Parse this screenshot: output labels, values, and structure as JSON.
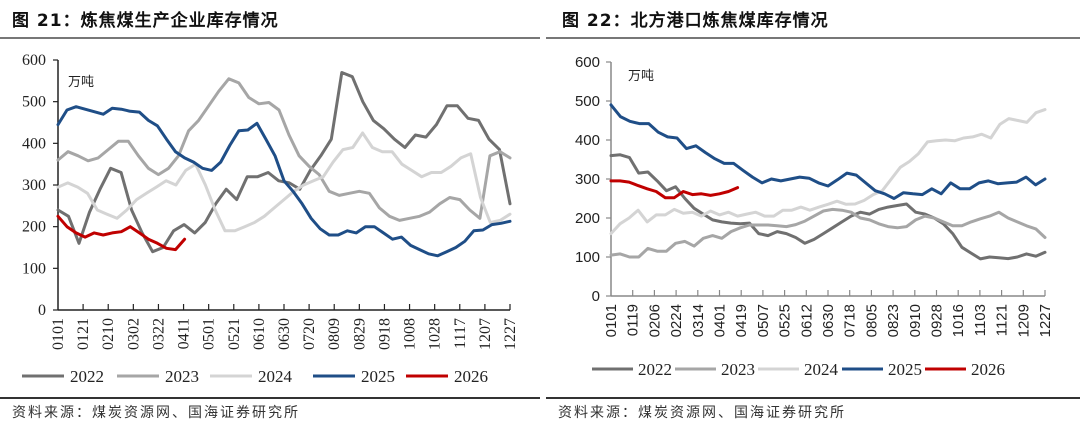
{
  "left_title": "图 21：炼焦煤生产企业库存情况",
  "right_title": "图 22：北方港口炼焦煤库存情况",
  "left_source": "资料来源：煤炭资源网、国海证券研究所",
  "right_source": "资料来源：煤炭资源网、国海证券研究所",
  "chart_data": [
    {
      "type": "line",
      "title": "炼焦煤生产企业库存情况",
      "ylabel": "万吨",
      "ylim": [
        0,
        600
      ],
      "yticks": [
        "0",
        "100",
        "200",
        "300",
        "400",
        "500",
        "600"
      ],
      "xtick_labels": [
        "0101",
        "0121",
        "0210",
        "0302",
        "0322",
        "0411",
        "0501",
        "0521",
        "0610",
        "0630",
        "0720",
        "0809",
        "0829",
        "0918",
        "1008",
        "1028",
        "1117",
        "1207",
        "1227"
      ],
      "x_step_days": 10,
      "legend": [
        "2022",
        "2023",
        "2024",
        "2025",
        "2026"
      ],
      "legend_position": "bottom",
      "series": [
        {
          "name": "2022",
          "color": "#707070",
          "values": [
            240,
            225,
            160,
            235,
            290,
            340,
            330,
            240,
            185,
            140,
            150,
            190,
            205,
            185,
            210,
            255,
            290,
            265,
            320,
            320,
            330,
            310,
            305,
            290,
            335,
            370,
            410,
            570,
            560,
            500,
            455,
            435,
            410,
            390,
            420,
            415,
            445,
            490,
            490,
            460,
            455,
            410,
            385,
            255
          ]
        },
        {
          "name": "2023",
          "color": "#a6a6a6",
          "values": [
            360,
            380,
            370,
            358,
            365,
            385,
            405,
            405,
            370,
            340,
            325,
            340,
            370,
            430,
            455,
            490,
            525,
            555,
            545,
            510,
            495,
            498,
            480,
            420,
            370,
            345,
            325,
            285,
            275,
            280,
            285,
            280,
            245,
            225,
            215,
            220,
            225,
            235,
            255,
            270,
            265,
            240,
            220,
            370,
            380,
            365
          ]
        },
        {
          "name": "2024",
          "color": "#d4d4d4",
          "values": [
            295,
            305,
            295,
            280,
            240,
            230,
            220,
            240,
            265,
            280,
            295,
            310,
            300,
            335,
            350,
            300,
            240,
            190,
            190,
            200,
            210,
            225,
            245,
            265,
            285,
            300,
            310,
            320,
            355,
            385,
            390,
            425,
            390,
            380,
            380,
            350,
            335,
            320,
            330,
            330,
            345,
            365,
            375,
            270,
            210,
            215,
            230
          ]
        },
        {
          "name": "2025",
          "color": "#1f4e87",
          "values": [
            445,
            480,
            488,
            482,
            476,
            470,
            484,
            482,
            477,
            475,
            455,
            442,
            410,
            380,
            365,
            355,
            340,
            335,
            355,
            395,
            430,
            432,
            448,
            410,
            370,
            310,
            285,
            255,
            220,
            195,
            180,
            180,
            190,
            185,
            200,
            200,
            185,
            170,
            175,
            155,
            145,
            135,
            130,
            140,
            150,
            165,
            190,
            192,
            205,
            208,
            213
          ]
        },
        {
          "name": "2026",
          "color": "#c00000",
          "values": [
            225,
            200,
            185,
            175,
            185,
            180,
            185,
            188,
            200,
            185,
            170,
            160,
            148,
            145,
            170
          ]
        }
      ]
    },
    {
      "type": "line",
      "title": "北方港口炼焦煤库存情况",
      "ylabel": "万吨",
      "ylim": [
        0,
        600
      ],
      "yticks": [
        "0",
        "100",
        "200",
        "300",
        "400",
        "500",
        "600"
      ],
      "xtick_labels": [
        "0101",
        "0119",
        "0206",
        "0224",
        "0314",
        "0401",
        "0419",
        "0507",
        "0525",
        "0612",
        "0630",
        "0718",
        "0805",
        "0823",
        "0910",
        "0928",
        "1016",
        "1103",
        "1121",
        "1209",
        "1227"
      ],
      "x_step_days": 9,
      "legend": [
        "2022",
        "2023",
        "2024",
        "2025",
        "2026"
      ],
      "legend_position": "bottom",
      "series": [
        {
          "name": "2022",
          "color": "#707070",
          "values": [
            360,
            362,
            355,
            315,
            318,
            295,
            270,
            280,
            250,
            225,
            210,
            195,
            190,
            187,
            185,
            187,
            160,
            155,
            165,
            160,
            150,
            135,
            145,
            160,
            175,
            190,
            205,
            215,
            210,
            222,
            228,
            232,
            236,
            215,
            210,
            200,
            185,
            160,
            125,
            110,
            95,
            100,
            98,
            96,
            100,
            108,
            102,
            112
          ]
        },
        {
          "name": "2023",
          "color": "#a6a6a6",
          "values": [
            105,
            108,
            100,
            100,
            122,
            115,
            115,
            135,
            140,
            128,
            148,
            155,
            148,
            165,
            175,
            182,
            182,
            182,
            180,
            178,
            183,
            192,
            205,
            218,
            222,
            220,
            215,
            200,
            195,
            185,
            178,
            175,
            178,
            195,
            205,
            200,
            190,
            180,
            180,
            190,
            198,
            205,
            215,
            200,
            190,
            180,
            172,
            150
          ]
        },
        {
          "name": "2024",
          "color": "#d4d4d4",
          "values": [
            160,
            185,
            200,
            220,
            190,
            208,
            208,
            222,
            212,
            215,
            205,
            218,
            208,
            215,
            205,
            210,
            215,
            205,
            205,
            220,
            220,
            228,
            220,
            228,
            235,
            243,
            235,
            236,
            245,
            260,
            270,
            300,
            330,
            345,
            365,
            395,
            398,
            400,
            398,
            405,
            408,
            415,
            405,
            440,
            455,
            450,
            445,
            470,
            478
          ]
        },
        {
          "name": "2025",
          "color": "#1f4e87",
          "values": [
            490,
            460,
            448,
            442,
            442,
            420,
            408,
            405,
            378,
            385,
            368,
            352,
            340,
            340,
            322,
            305,
            290,
            300,
            295,
            300,
            305,
            302,
            290,
            282,
            298,
            315,
            310,
            290,
            270,
            262,
            250,
            265,
            262,
            260,
            275,
            262,
            290,
            275,
            275,
            290,
            295,
            288,
            290,
            292,
            305,
            285,
            300
          ]
        },
        {
          "name": "2026",
          "color": "#c00000",
          "values": [
            295,
            295,
            292,
            283,
            275,
            268,
            252,
            252,
            268,
            260,
            262,
            258,
            262,
            268,
            278
          ]
        }
      ]
    }
  ]
}
